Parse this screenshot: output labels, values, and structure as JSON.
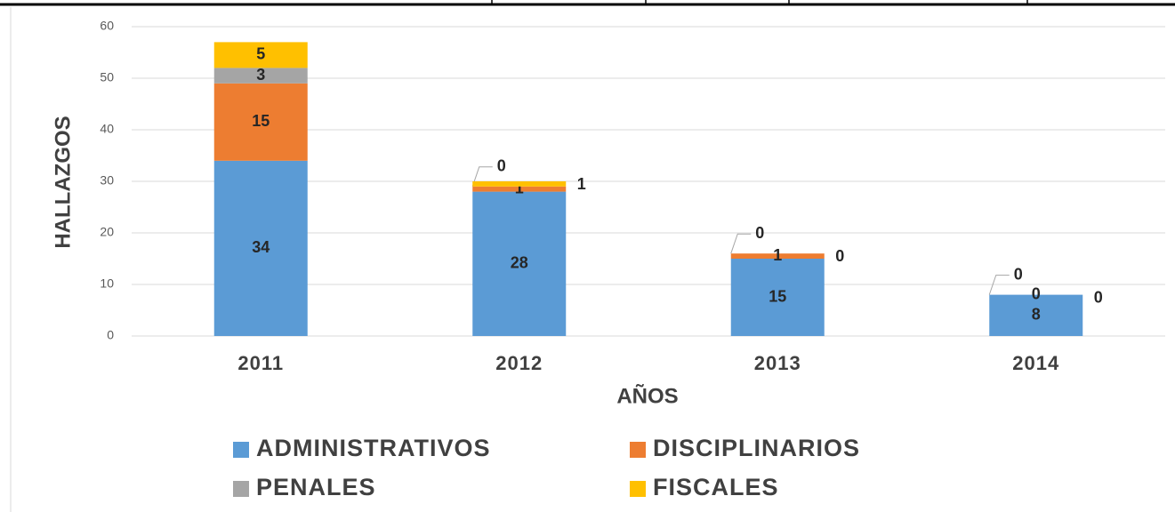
{
  "chart_data": {
    "type": "stacked_bar",
    "x_label": "AÑOS",
    "y_label": "HALLAZGOS",
    "categories": [
      "2011",
      "2012",
      "2013",
      "2014"
    ],
    "series": [
      {
        "name": "ADMINISTRATIVOS",
        "color": "#5b9bd5",
        "values": [
          34,
          28,
          15,
          8
        ]
      },
      {
        "name": "DISCIPLINARIOS",
        "color": "#ed7d31",
        "values": [
          15,
          1,
          1,
          0
        ]
      },
      {
        "name": "PENALES",
        "color": "#a5a5a5",
        "values": [
          3,
          0,
          0,
          0
        ]
      },
      {
        "name": "FISCALES",
        "color": "#ffc000",
        "values": [
          5,
          1,
          0,
          0
        ]
      }
    ],
    "ylim": [
      0,
      60
    ],
    "yticks": [
      0,
      10,
      20,
      30,
      40,
      50,
      60
    ],
    "grid": true
  }
}
